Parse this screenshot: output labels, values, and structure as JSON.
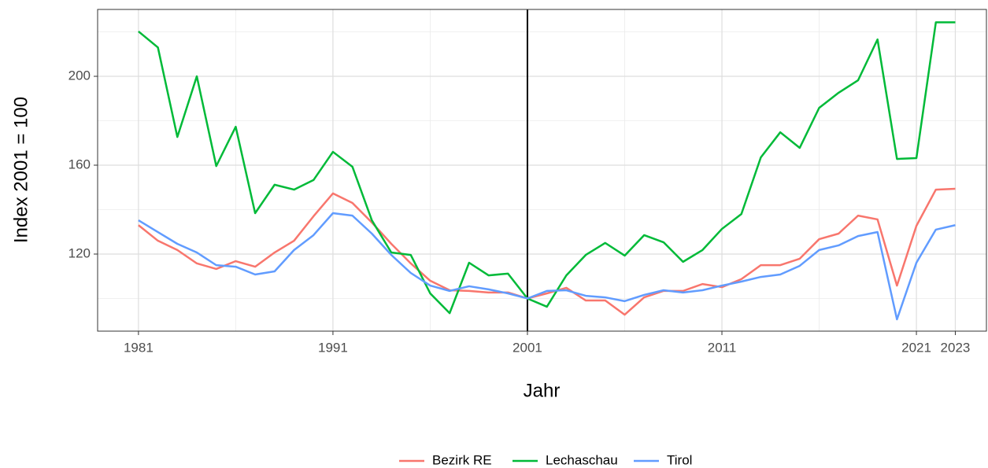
{
  "chart_data": {
    "type": "line",
    "x_label": "Jahr",
    "y_label": "Index 2001 = 100",
    "x": [
      1981,
      1982,
      1983,
      1984,
      1985,
      1986,
      1987,
      1988,
      1989,
      1990,
      1991,
      1992,
      1993,
      1994,
      1995,
      1996,
      1997,
      1998,
      1999,
      2000,
      2001,
      2002,
      2003,
      2004,
      2005,
      2006,
      2007,
      2008,
      2009,
      2010,
      2011,
      2012,
      2013,
      2014,
      2015,
      2016,
      2017,
      2018,
      2019,
      2020,
      2021,
      2022,
      2023
    ],
    "series": [
      {
        "name": "Bezirk RE",
        "color": "#F8766D",
        "values": [
          133,
          126,
          121.8,
          115.8,
          113.3,
          116.8,
          114.3,
          120.7,
          126,
          137,
          147.3,
          143,
          134.2,
          124.6,
          115.8,
          108,
          103.7,
          103.4,
          102.7,
          102.7,
          100,
          102.3,
          104.8,
          99.1,
          99.1,
          92.7,
          100.5,
          103.4,
          103.4,
          106.5,
          105.1,
          108.7,
          115,
          115,
          117.9,
          126.7,
          129.2,
          137.3,
          135.6,
          105.8,
          132.7,
          149,
          149.4
        ]
      },
      {
        "name": "Lechaschau",
        "color": "#00BA38",
        "values": [
          220.2,
          213,
          172.7,
          200,
          159.6,
          177.3,
          138.4,
          151.2,
          149,
          153.3,
          166,
          159.3,
          135.2,
          120.7,
          119.6,
          102.3,
          93.4,
          116.1,
          110.4,
          111.2,
          100,
          96.3,
          110.4,
          119.6,
          125,
          119.3,
          128.5,
          125.3,
          116.5,
          121.8,
          131.3,
          138,
          163.5,
          174.8,
          167.8,
          185.8,
          192.6,
          198.2,
          216.6,
          162.8,
          163.2,
          224.3,
          224.3
        ]
      },
      {
        "name": "Tirol",
        "color": "#619CFF",
        "values": [
          135.2,
          129.9,
          124.6,
          120.7,
          115,
          114.3,
          110.8,
          112.2,
          121.8,
          128.5,
          138.4,
          137.3,
          129.2,
          119.6,
          111.5,
          105.8,
          103.4,
          105.5,
          104.1,
          102.3,
          100,
          103.4,
          103.7,
          101.2,
          100.5,
          98.8,
          101.6,
          103.7,
          102.7,
          103.7,
          105.8,
          107.6,
          109.7,
          110.8,
          114.7,
          121.8,
          123.9,
          128.1,
          129.9,
          90.6,
          116.1,
          131,
          133
        ]
      }
    ],
    "xlim": [
      1978.9,
      2024.6
    ],
    "xticks": [
      1981,
      1991,
      2001,
      2011,
      2021,
      2023
    ],
    "x_minor_ticks": [
      1986,
      1996,
      2006,
      2016
    ],
    "ylim": [
      85.3,
      230.1
    ],
    "yticks": [
      120,
      160,
      200
    ],
    "y_minor_ticks": [
      100,
      140,
      180,
      220
    ],
    "vline": 2001,
    "grid": true,
    "legend": "bottom"
  }
}
